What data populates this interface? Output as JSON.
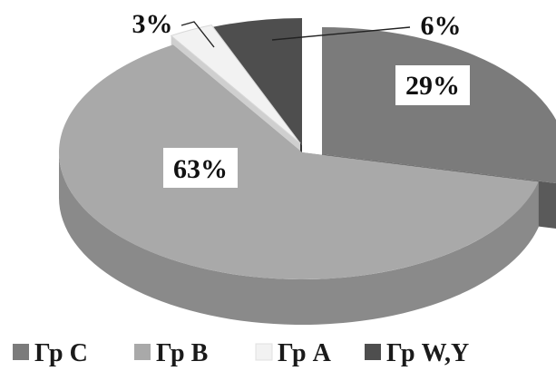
{
  "chart_data": {
    "type": "pie",
    "categories": [
      "Гр C",
      "Гр B",
      "Гр A",
      "Гр W,Y"
    ],
    "values": [
      29,
      63,
      3,
      6
    ],
    "labels": [
      "29%",
      "63%",
      "3%",
      "6%"
    ],
    "colors": [
      "#7b7b7b",
      "#a9a9a9",
      "#f2f2f2",
      "#4e4e4e"
    ],
    "side_colors": [
      "#5a5a5a",
      "#8a8a8a",
      "#cfcfcf",
      "#363636"
    ],
    "legend": {
      "position": "bottom",
      "items": [
        "Гр C",
        "Гр B",
        "Гр A",
        "Гр W,Y"
      ]
    },
    "style": "3d-exploded"
  }
}
